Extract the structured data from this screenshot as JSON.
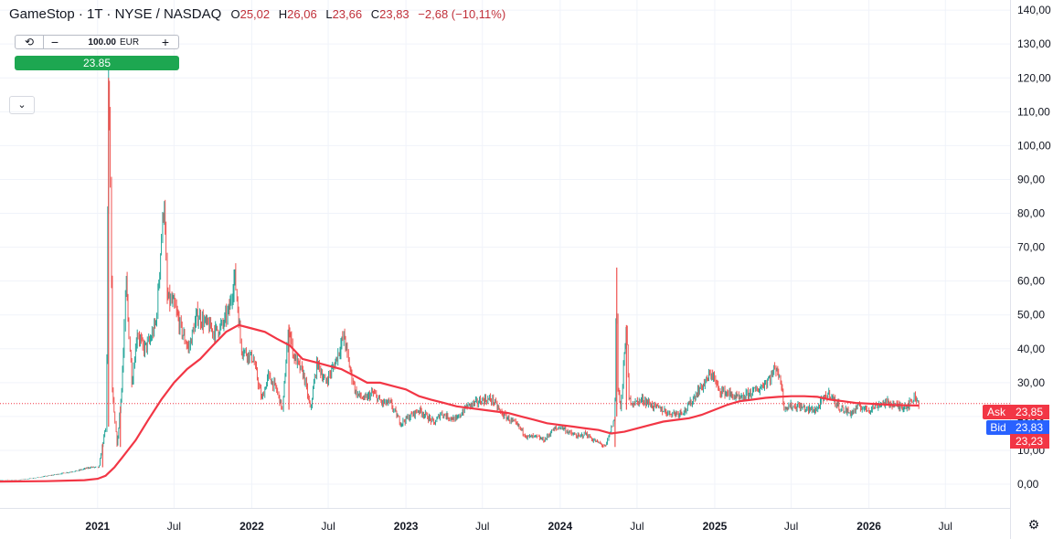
{
  "header": {
    "title": "GameStop · 1T · NYSE / NASDAQ",
    "ohlc": [
      {
        "label": "O",
        "value": "25,02"
      },
      {
        "label": "H",
        "value": "26,06"
      },
      {
        "label": "L",
        "value": "23,66"
      },
      {
        "label": "C",
        "value": "23,83"
      }
    ],
    "change": "−2,68 (−10,11%)"
  },
  "order_widget": {
    "icon": "refresh-icon",
    "minus": "−",
    "quantity": "100.00",
    "currency": "EUR",
    "plus": "+",
    "buy_price": "23.85"
  },
  "collapse_icon": "chevron-down-icon",
  "price_tags": {
    "ask_label": "Ask",
    "ask_value": "23,85",
    "bid_label": "Bid",
    "bid_value": "23,83",
    "ma_value": "23,23",
    "ask_color": "#f23645",
    "bid_color": "#2962ff"
  },
  "settings_icon": "gear-icon",
  "chart_data": {
    "type": "candlestick",
    "y_ticks": [
      "0,00",
      "10,00",
      "20,00",
      "30,00",
      "40,00",
      "50,00",
      "60,00",
      "70,00",
      "80,00",
      "90,00",
      "100,00",
      "110,00",
      "120,00",
      "130,00",
      "140,00"
    ],
    "ylim": [
      -7,
      143
    ],
    "x_ticks": [
      "2021",
      "Jul",
      "2022",
      "Jul",
      "2023",
      "Jul",
      "2024",
      "Jul",
      "2025",
      "Jul",
      "2026",
      "Jul"
    ],
    "xlim": [
      "2020-05-15",
      "2026-12-01"
    ],
    "grid": true,
    "current_price": 23.83,
    "up_color": "#26a69a",
    "down_color": "#ef5350",
    "price_series": {
      "name": "",
      "points": [
        [
          "2020-05-15",
          1.3
        ],
        [
          "2020-07-01",
          1.3
        ],
        [
          "2020-08-15",
          2
        ],
        [
          "2020-10-01",
          3
        ],
        [
          "2020-11-15",
          4
        ],
        [
          "2020-12-15",
          5
        ],
        [
          "2021-01-05",
          5
        ],
        [
          "2021-01-13",
          12
        ],
        [
          "2021-01-22",
          17
        ],
        [
          "2021-01-27",
          120
        ],
        [
          "2021-02-01",
          90
        ],
        [
          "2021-02-05",
          28
        ],
        [
          "2021-02-10",
          20
        ],
        [
          "2021-02-17",
          11
        ],
        [
          "2021-02-24",
          23
        ],
        [
          "2021-03-03",
          37
        ],
        [
          "2021-03-10",
          60
        ],
        [
          "2021-03-15",
          48
        ],
        [
          "2021-03-24",
          30
        ],
        [
          "2021-04-05",
          45
        ],
        [
          "2021-04-20",
          40
        ],
        [
          "2021-05-05",
          42
        ],
        [
          "2021-05-20",
          48
        ],
        [
          "2021-06-08",
          85
        ],
        [
          "2021-06-15",
          55
        ],
        [
          "2021-07-01",
          53
        ],
        [
          "2021-07-20",
          45
        ],
        [
          "2021-08-05",
          40
        ],
        [
          "2021-08-25",
          50
        ],
        [
          "2021-09-10",
          48
        ],
        [
          "2021-10-05",
          45
        ],
        [
          "2021-10-25",
          47
        ],
        [
          "2021-11-10",
          52
        ],
        [
          "2021-11-22",
          62
        ],
        [
          "2021-12-08",
          40
        ],
        [
          "2022-01-05",
          37
        ],
        [
          "2022-01-25",
          25
        ],
        [
          "2022-02-10",
          32
        ],
        [
          "2022-03-01",
          28
        ],
        [
          "2022-03-15",
          22
        ],
        [
          "2022-03-30",
          47
        ],
        [
          "2022-04-10",
          38
        ],
        [
          "2022-05-05",
          32
        ],
        [
          "2022-05-20",
          22
        ],
        [
          "2022-06-05",
          36
        ],
        [
          "2022-06-25",
          30
        ],
        [
          "2022-07-15",
          35
        ],
        [
          "2022-08-08",
          44
        ],
        [
          "2022-08-20",
          35
        ],
        [
          "2022-09-05",
          27
        ],
        [
          "2022-09-25",
          25
        ],
        [
          "2022-10-15",
          27
        ],
        [
          "2022-11-05",
          24
        ],
        [
          "2022-11-25",
          24
        ],
        [
          "2022-12-20",
          18
        ],
        [
          "2023-01-10",
          20
        ],
        [
          "2023-02-01",
          22
        ],
        [
          "2023-02-20",
          20
        ],
        [
          "2023-03-10",
          18
        ],
        [
          "2023-03-25",
          21
        ],
        [
          "2023-04-10",
          20
        ],
        [
          "2023-05-01",
          19
        ],
        [
          "2023-05-25",
          23
        ],
        [
          "2023-06-15",
          24
        ],
        [
          "2023-07-05",
          25
        ],
        [
          "2023-07-25",
          25
        ],
        [
          "2023-08-15",
          21
        ],
        [
          "2023-09-05",
          19
        ],
        [
          "2023-09-25",
          17
        ],
        [
          "2023-10-15",
          14
        ],
        [
          "2023-11-05",
          14
        ],
        [
          "2023-11-25",
          13
        ],
        [
          "2023-12-15",
          16
        ],
        [
          "2024-01-05",
          17
        ],
        [
          "2024-01-25",
          15
        ],
        [
          "2024-02-15",
          14
        ],
        [
          "2024-03-01",
          15
        ],
        [
          "2024-03-20",
          13
        ],
        [
          "2024-04-05",
          12
        ],
        [
          "2024-04-18",
          11
        ],
        [
          "2024-05-10",
          20
        ],
        [
          "2024-05-14",
          64
        ],
        [
          "2024-05-16",
          30
        ],
        [
          "2024-05-24",
          22
        ],
        [
          "2024-06-06",
          47
        ],
        [
          "2024-06-12",
          25
        ],
        [
          "2024-06-25",
          24
        ],
        [
          "2024-07-15",
          25
        ],
        [
          "2024-08-10",
          23
        ],
        [
          "2024-08-30",
          22
        ],
        [
          "2024-09-15",
          21
        ],
        [
          "2024-10-05",
          21
        ],
        [
          "2024-10-25",
          22
        ],
        [
          "2024-11-10",
          25
        ],
        [
          "2024-11-25",
          28
        ],
        [
          "2024-12-10",
          30
        ],
        [
          "2024-12-25",
          33
        ],
        [
          "2025-01-10",
          28
        ],
        [
          "2025-01-30",
          27
        ],
        [
          "2025-02-15",
          26
        ],
        [
          "2025-03-05",
          25
        ],
        [
          "2025-03-25",
          27
        ],
        [
          "2025-04-15",
          28
        ],
        [
          "2025-05-01",
          30
        ],
        [
          "2025-05-15",
          32
        ],
        [
          "2025-05-28",
          35
        ],
        [
          "2025-06-05",
          30
        ],
        [
          "2025-06-11",
          29
        ],
        [
          "2025-06-12",
          23
        ],
        [
          "2025-07-01",
          23
        ],
        [
          "2025-07-20",
          23
        ],
        [
          "2025-08-10",
          22
        ],
        [
          "2025-08-30",
          22
        ],
        [
          "2025-09-15",
          25
        ],
        [
          "2025-09-30",
          27
        ],
        [
          "2025-10-15",
          24
        ],
        [
          "2025-11-01",
          22
        ],
        [
          "2025-11-20",
          21
        ],
        [
          "2025-12-10",
          23
        ],
        [
          "2025-12-30",
          22
        ],
        [
          "2026-01-15",
          23
        ],
        [
          "2026-02-01",
          24
        ],
        [
          "2026-02-20",
          24
        ],
        [
          "2026-03-10",
          23
        ],
        [
          "2026-03-25",
          23
        ],
        [
          "2026-04-10",
          24
        ],
        [
          "2026-04-20",
          26
        ],
        [
          "2026-04-30",
          23.83
        ]
      ]
    },
    "moving_average": {
      "name": "",
      "color": "#f23645",
      "points": [
        [
          "2020-05-15",
          0.8
        ],
        [
          "2020-09-01",
          0.9
        ],
        [
          "2020-12-01",
          1.2
        ],
        [
          "2021-01-01",
          1.6
        ],
        [
          "2021-01-20",
          2.5
        ],
        [
          "2021-02-10",
          5
        ],
        [
          "2021-03-01",
          8
        ],
        [
          "2021-04-01",
          13
        ],
        [
          "2021-05-01",
          19
        ],
        [
          "2021-06-01",
          25
        ],
        [
          "2021-07-01",
          30
        ],
        [
          "2021-08-01",
          34
        ],
        [
          "2021-09-01",
          37
        ],
        [
          "2021-10-01",
          41
        ],
        [
          "2021-11-01",
          45
        ],
        [
          "2021-12-01",
          47
        ],
        [
          "2022-01-01",
          46
        ],
        [
          "2022-02-01",
          45
        ],
        [
          "2022-03-01",
          43
        ],
        [
          "2022-04-01",
          41
        ],
        [
          "2022-05-01",
          37
        ],
        [
          "2022-06-01",
          36
        ],
        [
          "2022-07-01",
          35
        ],
        [
          "2022-08-01",
          34
        ],
        [
          "2022-09-01",
          32
        ],
        [
          "2022-10-01",
          30
        ],
        [
          "2022-11-01",
          30
        ],
        [
          "2022-12-01",
          29
        ],
        [
          "2023-01-01",
          28
        ],
        [
          "2023-02-01",
          26
        ],
        [
          "2023-03-01",
          25
        ],
        [
          "2023-04-01",
          24
        ],
        [
          "2023-05-01",
          23
        ],
        [
          "2023-06-01",
          22.5
        ],
        [
          "2023-07-01",
          22
        ],
        [
          "2023-08-01",
          21.5
        ],
        [
          "2023-09-01",
          21
        ],
        [
          "2023-10-01",
          20
        ],
        [
          "2023-11-01",
          19
        ],
        [
          "2023-12-01",
          18
        ],
        [
          "2024-01-01",
          17.5
        ],
        [
          "2024-02-01",
          17
        ],
        [
          "2024-03-01",
          16.5
        ],
        [
          "2024-04-01",
          16
        ],
        [
          "2024-05-01",
          15
        ],
        [
          "2024-06-01",
          15.5
        ],
        [
          "2024-07-01",
          16.5
        ],
        [
          "2024-08-01",
          17.5
        ],
        [
          "2024-09-01",
          18.5
        ],
        [
          "2024-10-01",
          19
        ],
        [
          "2024-11-01",
          19.5
        ],
        [
          "2024-12-01",
          20.5
        ],
        [
          "2025-01-01",
          22
        ],
        [
          "2025-02-01",
          23.5
        ],
        [
          "2025-03-01",
          24.5
        ],
        [
          "2025-04-01",
          25
        ],
        [
          "2025-05-01",
          25.5
        ],
        [
          "2025-06-01",
          25.8
        ],
        [
          "2025-07-01",
          26
        ],
        [
          "2025-08-01",
          26
        ],
        [
          "2025-09-01",
          25.8
        ],
        [
          "2025-10-01",
          25
        ],
        [
          "2025-11-01",
          24.5
        ],
        [
          "2025-12-01",
          24
        ],
        [
          "2026-01-01",
          23.8
        ],
        [
          "2026-02-01",
          23.6
        ],
        [
          "2026-03-01",
          23.4
        ],
        [
          "2026-04-01",
          23.3
        ],
        [
          "2026-04-30",
          23.23
        ]
      ]
    }
  }
}
